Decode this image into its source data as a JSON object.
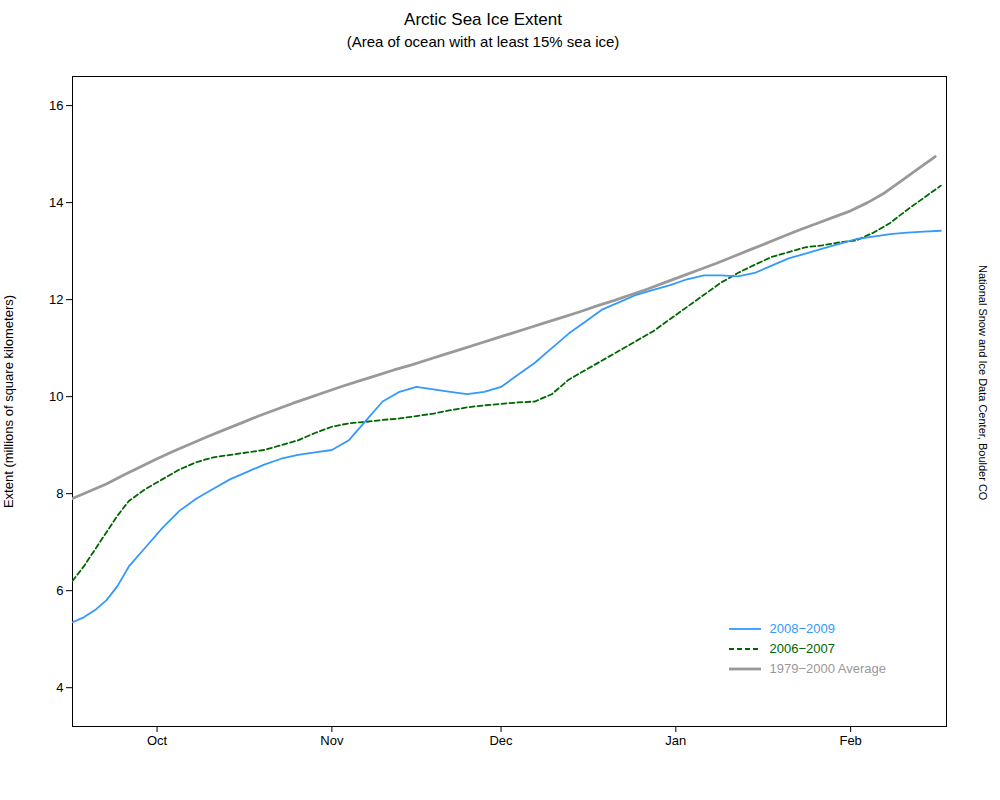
{
  "chart_data": {
    "type": "line",
    "title": "Arctic Sea Ice Extent",
    "subtitle": "(Area of ocean with at least 15% sea ice)",
    "ylabel": "Extent (millions of square kilometers)",
    "annotations": [
      "National Snow and Ice Data Center, Boulder CO"
    ],
    "xlim": [
      0,
      155
    ],
    "xticks": [
      {
        "value": 15,
        "label": "Oct"
      },
      {
        "value": 46,
        "label": "Nov"
      },
      {
        "value": 76,
        "label": "Dec"
      },
      {
        "value": 107,
        "label": "Jan"
      },
      {
        "value": 138,
        "label": "Feb"
      }
    ],
    "ylim": [
      3.2,
      16.6
    ],
    "yticks": [
      4,
      6,
      8,
      10,
      12,
      14,
      16
    ],
    "grid": false,
    "legend": "lower right",
    "series": [
      {
        "name": "2008−2009",
        "color": "#3399ff",
        "line_style": "solid",
        "x": [
          0,
          2,
          4,
          6,
          8,
          10,
          13,
          16,
          19,
          22,
          25,
          28,
          31,
          34,
          37,
          40,
          43,
          46,
          49,
          52,
          55,
          58,
          61,
          64,
          67,
          70,
          73,
          76,
          79,
          82,
          85,
          88,
          91,
          94,
          97,
          100,
          103,
          106,
          109,
          112,
          115,
          118,
          121,
          124,
          127,
          130,
          133,
          136,
          139,
          142,
          145,
          148,
          151,
          154
        ],
        "values": [
          5.35,
          5.45,
          5.6,
          5.8,
          6.1,
          6.5,
          6.9,
          7.3,
          7.65,
          7.9,
          8.1,
          8.3,
          8.45,
          8.6,
          8.72,
          8.8,
          8.85,
          8.9,
          9.1,
          9.5,
          9.9,
          10.1,
          10.2,
          10.15,
          10.1,
          10.05,
          10.1,
          10.2,
          10.45,
          10.7,
          11.0,
          11.3,
          11.55,
          11.8,
          11.95,
          12.1,
          12.2,
          12.3,
          12.42,
          12.5,
          12.5,
          12.48,
          12.55,
          12.7,
          12.85,
          12.95,
          13.05,
          13.15,
          13.25,
          13.3,
          13.35,
          13.38,
          13.4,
          13.42
        ]
      },
      {
        "name": "2006−2007",
        "color": "#006600",
        "line_style": "dashed",
        "x": [
          0,
          2,
          4,
          6,
          8,
          10,
          13,
          16,
          19,
          22,
          25,
          28,
          31,
          34,
          37,
          40,
          43,
          46,
          49,
          52,
          55,
          58,
          61,
          64,
          67,
          70,
          73,
          76,
          79,
          82,
          85,
          88,
          91,
          94,
          97,
          100,
          103,
          106,
          109,
          112,
          115,
          118,
          121,
          124,
          127,
          130,
          133,
          136,
          139,
          142,
          145,
          148,
          151,
          154
        ],
        "values": [
          6.2,
          6.5,
          6.85,
          7.2,
          7.55,
          7.85,
          8.1,
          8.3,
          8.5,
          8.65,
          8.75,
          8.8,
          8.85,
          8.9,
          9.0,
          9.1,
          9.25,
          9.38,
          9.45,
          9.48,
          9.52,
          9.55,
          9.6,
          9.65,
          9.72,
          9.78,
          9.82,
          9.85,
          9.88,
          9.9,
          10.05,
          10.35,
          10.55,
          10.75,
          10.95,
          11.15,
          11.35,
          11.6,
          11.85,
          12.1,
          12.35,
          12.55,
          12.72,
          12.88,
          12.98,
          13.08,
          13.12,
          13.18,
          13.22,
          13.38,
          13.58,
          13.85,
          14.1,
          14.35
        ]
      },
      {
        "name": "1979−2000 Average",
        "color": "#999999",
        "line_style": "solid",
        "x": [
          0,
          3,
          6,
          9,
          12,
          15,
          18,
          21,
          24,
          27,
          30,
          33,
          36,
          39,
          42,
          45,
          48,
          51,
          54,
          57,
          60,
          63,
          66,
          69,
          72,
          75,
          78,
          81,
          84,
          87,
          90,
          93,
          96,
          99,
          102,
          105,
          108,
          111,
          114,
          117,
          120,
          123,
          126,
          129,
          132,
          135,
          138,
          141,
          144,
          147,
          150,
          153
        ],
        "values": [
          7.9,
          8.05,
          8.2,
          8.38,
          8.55,
          8.72,
          8.88,
          9.03,
          9.18,
          9.32,
          9.46,
          9.6,
          9.73,
          9.86,
          9.98,
          10.1,
          10.22,
          10.33,
          10.44,
          10.55,
          10.65,
          10.76,
          10.87,
          10.98,
          11.09,
          11.2,
          11.31,
          11.42,
          11.53,
          11.64,
          11.75,
          11.87,
          11.98,
          12.1,
          12.22,
          12.35,
          12.48,
          12.61,
          12.74,
          12.88,
          13.02,
          13.16,
          13.3,
          13.44,
          13.57,
          13.7,
          13.83,
          14.0,
          14.2,
          14.45,
          14.7,
          14.95
        ]
      }
    ]
  }
}
